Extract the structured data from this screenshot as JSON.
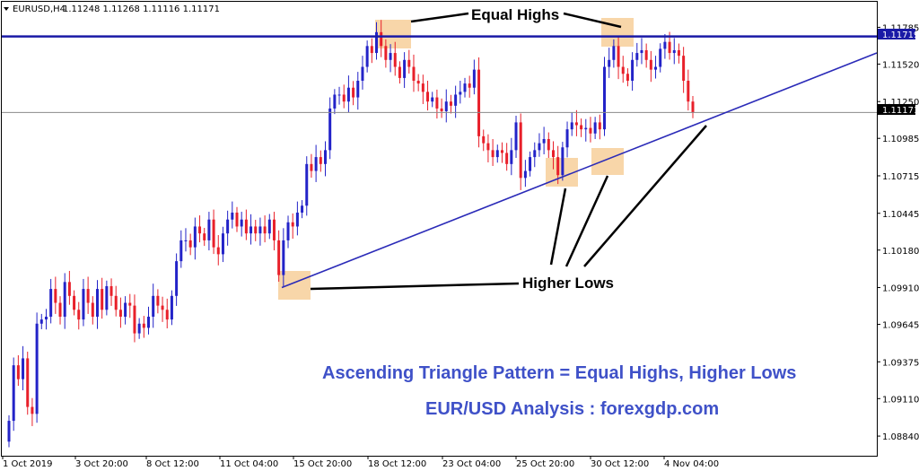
{
  "header": {
    "symbol_timeframe": "EURUSD,H4",
    "ohlc": "1.11248 1.11268 1.11116 1.11171"
  },
  "annotations": {
    "equal_highs": "Equal Highs",
    "higher_lows": "Higher Lows",
    "caption_line1": "Ascending Triangle Pattern = Equal Highs, Higher Lows",
    "caption_line2": "EUR/USD Analysis : forexgdp.com"
  },
  "colors": {
    "bull": "#2323c8",
    "bear": "#e8202a",
    "resistance": "#1a1aa6",
    "trendline": "#2b2bb8",
    "highlight": "#f7cf9a",
    "axis": "#000000"
  },
  "chart_data": {
    "type": "candlestick",
    "ylim": [
      1.0875,
      1.1193
    ],
    "y_ticks": [
      "1.11785",
      "1.11520",
      "1.11250",
      "1.10985",
      "1.10715",
      "1.10445",
      "1.10180",
      "1.09910",
      "1.09645",
      "1.09375",
      "1.09110",
      "1.08840"
    ],
    "x_ticks": [
      "1 Oct 2019",
      "3 Oct 20:00",
      "8 Oct 12:00",
      "11 Oct 04:00",
      "15 Oct 20:00",
      "18 Oct 12:00",
      "23 Oct 04:00",
      "25 Oct 20:00",
      "30 Oct 12:00",
      "4 Nov 04:00"
    ],
    "resistance_level": "1.11719",
    "current_price": "1.11171",
    "trendline": {
      "start": 1.0991,
      "end": 1.116
    },
    "closes": [
      1.0895,
      1.0935,
      1.0925,
      1.094,
      1.0905,
      1.09,
      1.0965,
      1.0968,
      1.097,
      1.099,
      1.098,
      1.097,
      1.0995,
      1.0985,
      1.0975,
      1.0968,
      1.099,
      1.098,
      1.097,
      1.099,
      1.0975,
      1.0992,
      1.0985,
      1.0975,
      1.097,
      1.098,
      1.0978,
      1.0958,
      1.0965,
      1.0962,
      1.097,
      1.0985,
      1.0978,
      1.0975,
      1.0968,
      1.0985,
      1.101,
      1.1025,
      1.1025,
      1.102,
      1.1035,
      1.103,
      1.1025,
      1.104,
      1.102,
      1.1015,
      1.103,
      1.104,
      1.1045,
      1.1035,
      1.104,
      1.103,
      1.1035,
      1.103,
      1.1035,
      1.103,
      1.104,
      1.1025,
      1.1,
      1.1025,
      1.1038,
      1.1035,
      1.1045,
      1.105,
      1.108,
      1.1075,
      1.1085,
      1.108,
      1.109,
      1.112,
      1.113,
      1.113,
      1.1125,
      1.1135,
      1.1128,
      1.114,
      1.115,
      1.1165,
      1.116,
      1.1175,
      1.1165,
      1.1155,
      1.116,
      1.115,
      1.1142,
      1.1155,
      1.115,
      1.114,
      1.1138,
      1.1132,
      1.1125,
      1.1128,
      1.112,
      1.1118,
      1.1125,
      1.1122,
      1.113,
      1.1132,
      1.1138,
      1.1135,
      1.1148,
      1.11,
      1.1095,
      1.109,
      1.1085,
      1.109,
      1.1088,
      1.108,
      1.109,
      1.111,
      1.107,
      1.1075,
      1.1085,
      1.109,
      1.1095,
      1.1098,
      1.109,
      1.1085,
      1.1072,
      1.1092,
      1.1105,
      1.111,
      1.1108,
      1.1105,
      1.1106,
      1.1102,
      1.111,
      1.1105,
      1.115,
      1.1155,
      1.1165,
      1.115,
      1.1145,
      1.114,
      1.1155,
      1.116,
      1.1162,
      1.1155,
      1.1148,
      1.115,
      1.1163,
      1.1168,
      1.116,
      1.1162,
      1.1158,
      1.114,
      1.1125,
      1.1117
    ]
  }
}
